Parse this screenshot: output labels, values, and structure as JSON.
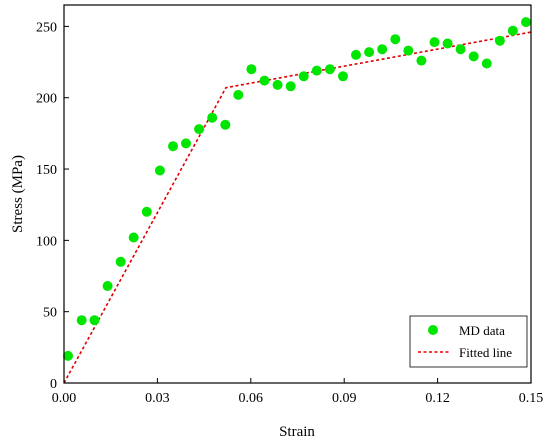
{
  "chart_data": {
    "type": "scatter",
    "title": "",
    "xlabel": "Strain",
    "ylabel": "Stress (MPa)",
    "xlim": [
      0.0,
      0.15
    ],
    "ylim": [
      0,
      265
    ],
    "xticks": [
      0.0,
      0.03,
      0.06,
      0.09,
      0.12,
      0.15
    ],
    "xtick_labels": [
      "0.00",
      "0.03",
      "0.06",
      "0.09",
      "0.12",
      "0.15"
    ],
    "yticks": [
      0,
      50,
      100,
      150,
      200,
      250
    ],
    "ytick_labels": [
      "0",
      "50",
      "100",
      "150",
      "200",
      "250"
    ],
    "grid": false,
    "legend_position": "bottom-right",
    "series": [
      {
        "name": "MD data",
        "kind": "markers",
        "color": "#00e600",
        "x": [
          0.0013,
          0.0057,
          0.0098,
          0.014,
          0.0182,
          0.0224,
          0.0266,
          0.0308,
          0.035,
          0.0392,
          0.0434,
          0.0476,
          0.0518,
          0.056,
          0.0602,
          0.0644,
          0.0686,
          0.0728,
          0.077,
          0.0812,
          0.0854,
          0.0896,
          0.0938,
          0.098,
          0.1022,
          0.1064,
          0.1106,
          0.1148,
          0.119,
          0.1232,
          0.1274,
          0.1316,
          0.1358,
          0.14,
          0.1442,
          0.1484
        ],
        "y": [
          19,
          44,
          44,
          68,
          85,
          102,
          120,
          149,
          166,
          168,
          178,
          186,
          181,
          202,
          220,
          212,
          209,
          208,
          215,
          219,
          220,
          215,
          230,
          232,
          234,
          241,
          233,
          226,
          239,
          238,
          234,
          229,
          224,
          240,
          247,
          253
        ]
      },
      {
        "name": "Fitted line",
        "kind": "dashed-line",
        "color": "#e00000",
        "x": [
          0.0,
          0.052,
          0.15
        ],
        "y": [
          0,
          207,
          246
        ]
      }
    ]
  }
}
